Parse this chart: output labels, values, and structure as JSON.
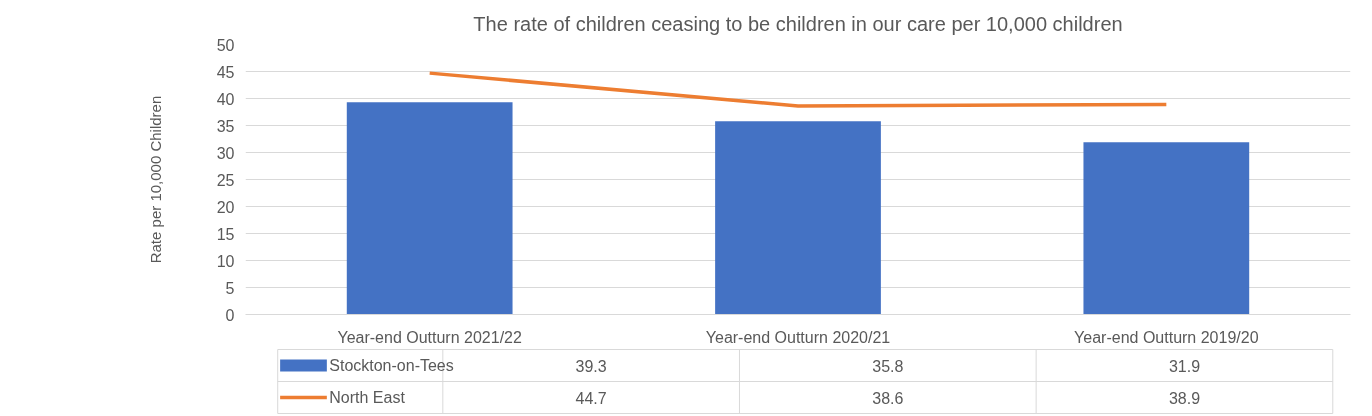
{
  "chart_data": {
    "type": "bar",
    "title": "The rate of children ceasing to be children in our care per 10,000 children",
    "ylabel": "Rate per 10,000 Children",
    "categories": [
      "Year-end Outturn 2021/22",
      "Year-end Outturn 2020/21",
      "Year-end Outturn 2019/20"
    ],
    "series": [
      {
        "name": "Stockton-on-Tees",
        "color": "#4472c4",
        "values": [
          39.3,
          35.8,
          31.9
        ]
      },
      {
        "name": "North East",
        "type": "line",
        "color": "#ed7d31",
        "values": [
          44.7,
          38.6,
          38.9
        ]
      }
    ],
    "ylim": [
      0,
      50
    ],
    "yticks": [
      0,
      5,
      10,
      15,
      20,
      25,
      30,
      35,
      40,
      45,
      50
    ],
    "grid": "y",
    "legend": "bottom",
    "data_labels": true
  }
}
